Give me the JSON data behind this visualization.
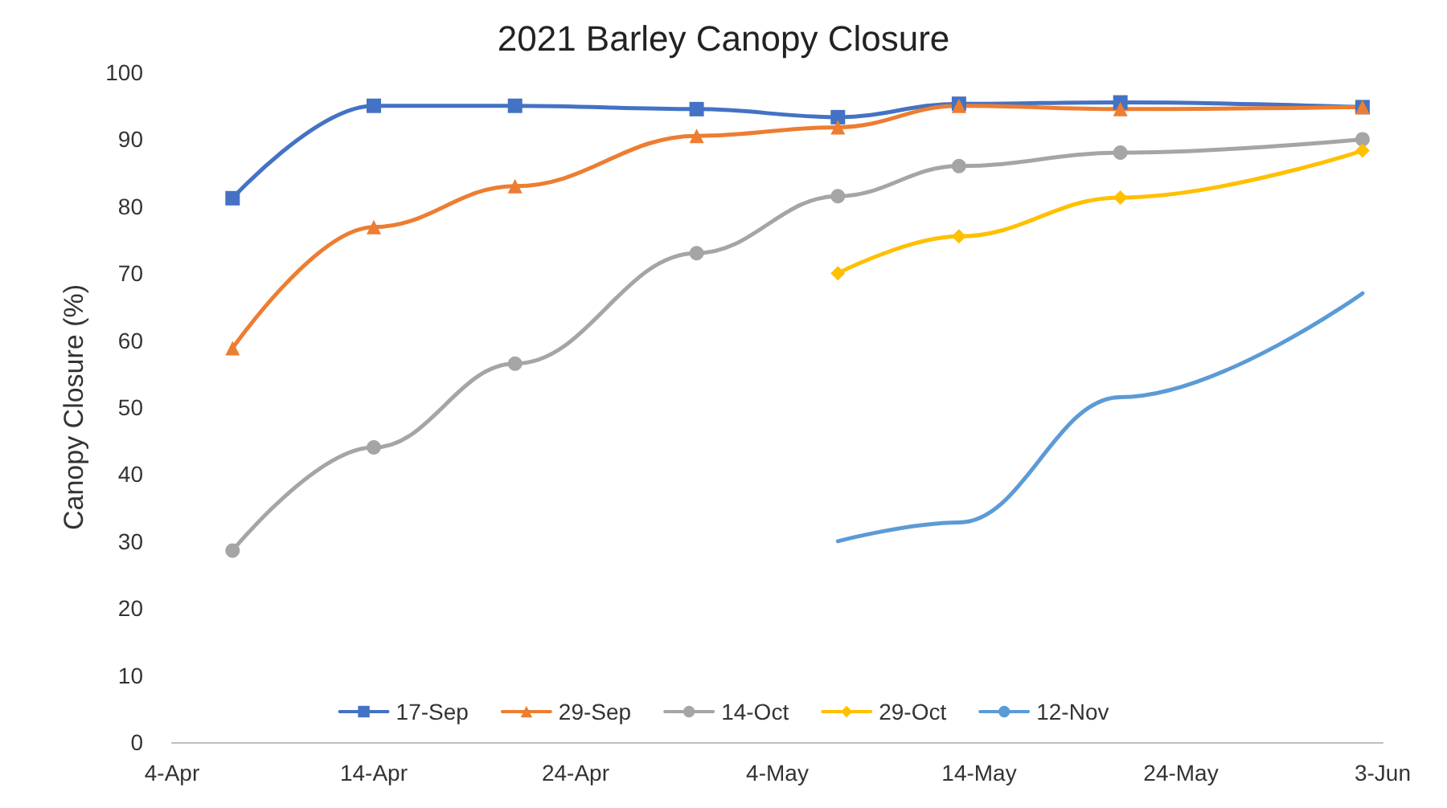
{
  "chart_data": {
    "type": "line",
    "title": "2021 Barley Canopy Closure",
    "ylabel": "Canopy Closure (%)",
    "x": [
      "2021-04-07",
      "2021-04-14",
      "2021-04-21",
      "2021-04-30",
      "2021-05-07",
      "2021-05-13",
      "2021-05-21",
      "2021-06-02"
    ],
    "series": [
      {
        "name": "17-Sep",
        "color": "#4472c4",
        "marker": "square",
        "values": [
          81.2,
          95,
          95,
          94.5,
          93.3,
          95.3,
          95.5,
          94.8
        ]
      },
      {
        "name": "29-Sep",
        "color": "#ed7d31",
        "marker": "triangle",
        "values": [
          58.8,
          76.9,
          83,
          90.5,
          91.8,
          95,
          94.5,
          94.8
        ]
      },
      {
        "name": "14-Oct",
        "color": "#a5a5a5",
        "marker": "circle",
        "values": [
          28.6,
          44,
          56.5,
          73,
          81.5,
          86,
          88,
          90
        ]
      },
      {
        "name": "29-Oct",
        "color": "#ffc000",
        "marker": "diamond",
        "values": [
          null,
          null,
          null,
          null,
          70,
          75.5,
          81.3,
          88.3
        ]
      },
      {
        "name": "12-Nov",
        "color": "#5b9bd5",
        "marker": "none",
        "values": [
          null,
          null,
          null,
          null,
          30,
          32.8,
          51.5,
          67
        ]
      }
    ],
    "xlim": [
      "2021-04-04",
      "2021-06-03"
    ],
    "xticks": [
      {
        "value": "2021-04-04",
        "label": "4-Apr"
      },
      {
        "value": "2021-04-14",
        "label": "14-Apr"
      },
      {
        "value": "2021-04-24",
        "label": "24-Apr"
      },
      {
        "value": "2021-05-04",
        "label": "4-May"
      },
      {
        "value": "2021-05-14",
        "label": "14-May"
      },
      {
        "value": "2021-05-24",
        "label": "24-May"
      },
      {
        "value": "2021-06-03",
        "label": "3-Jun"
      }
    ],
    "ylim": [
      0,
      100
    ],
    "yticks": [
      0,
      10,
      20,
      30,
      40,
      50,
      60,
      70,
      80,
      90,
      100
    ],
    "grid": false,
    "legend": "bottom",
    "line_style": "solid"
  }
}
